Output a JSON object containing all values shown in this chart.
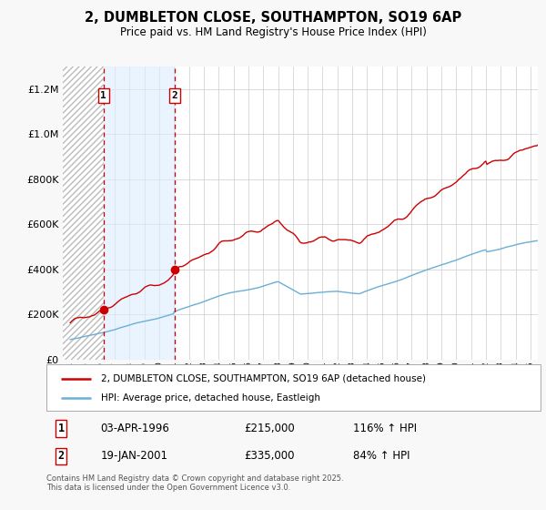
{
  "title": "2, DUMBLETON CLOSE, SOUTHAMPTON, SO19 6AP",
  "subtitle": "Price paid vs. HM Land Registry's House Price Index (HPI)",
  "legend_line1": "2, DUMBLETON CLOSE, SOUTHAMPTON, SO19 6AP (detached house)",
  "legend_line2": "HPI: Average price, detached house, Eastleigh",
  "sale1_label": "1",
  "sale1_date": "03-APR-1996",
  "sale1_price": "£215,000",
  "sale1_hpi": "116% ↑ HPI",
  "sale1_year": 1996.25,
  "sale1_value": 215000,
  "sale2_label": "2",
  "sale2_date": "19-JAN-2001",
  "sale2_price": "£335,000",
  "sale2_hpi": "84% ↑ HPI",
  "sale2_year": 2001.05,
  "sale2_value": 335000,
  "hpi_color": "#6baed6",
  "price_color": "#cc0000",
  "vline_color": "#cc0000",
  "shade_color": "#ddeeff",
  "hatch_color": "#cccccc",
  "background_color": "#f8f8f8",
  "plot_background": "#ffffff",
  "ylim": [
    0,
    1300000
  ],
  "xlim_start": 1993.5,
  "xlim_end": 2025.5,
  "footer": "Contains HM Land Registry data © Crown copyright and database right 2025.\nThis data is licensed under the Open Government Licence v3.0."
}
